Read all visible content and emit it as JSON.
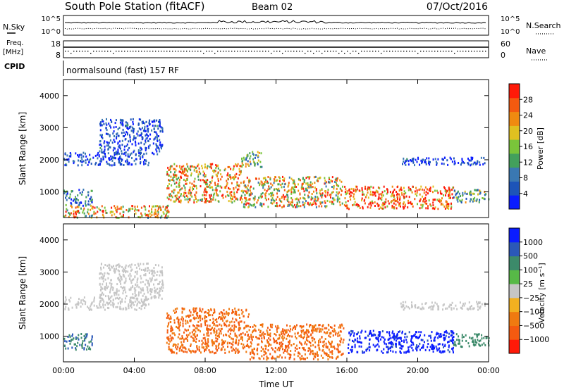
{
  "header": {
    "station": "South Pole Station (fitACF)",
    "beam": "Beam 02",
    "date": "07/Oct/2016"
  },
  "top_panels": {
    "noise": {
      "left_label": "N.Sky",
      "right_label": "N.Search",
      "left_ticks": [
        "10^5",
        "10^0"
      ],
      "right_ticks": [
        "10^5",
        "10^0"
      ]
    },
    "freq": {
      "left_label_1": "Freq.",
      "left_label_2": "[MHz]",
      "left_ticks": [
        "18",
        "8"
      ],
      "right_label": "Nave",
      "right_ticks": [
        "60",
        "0"
      ]
    },
    "cpid": {
      "label": "CPID",
      "mode": "normalsound (fast) 157 RF"
    }
  },
  "chart_data": [
    {
      "type": "heatmap",
      "name": "power",
      "ylabel": "Slant Range [km]",
      "xlabel": "",
      "xlim": [
        0,
        24
      ],
      "ylim": [
        200,
        4500
      ],
      "yticks": [
        "1000",
        "2000",
        "3000",
        "4000"
      ],
      "xticks": [
        "00:00",
        "04:00",
        "08:00",
        "12:00",
        "16:00",
        "20:00",
        "00:00"
      ],
      "colorbar": {
        "label": "Power [dB]",
        "ticks": [
          "4",
          "8",
          "12",
          "16",
          "20",
          "24",
          "28"
        ],
        "colors": [
          "#0a1cff",
          "#1d54b8",
          "#3a78b2",
          "#43a05c",
          "#7ac43a",
          "#e0c020",
          "#f08a10",
          "#f45a10",
          "#ff1a08"
        ]
      },
      "regions": [
        {
          "t0": 0.0,
          "t1": 4.8,
          "r0": 1850,
          "r1": 2250,
          "value": 6
        },
        {
          "t0": 2.0,
          "t1": 5.6,
          "r0": 2200,
          "r1": 3300,
          "value": 6
        },
        {
          "t0": 0.0,
          "t1": 1.6,
          "r0": 600,
          "r1": 1100,
          "value": 10
        },
        {
          "t0": 0.0,
          "t1": 6.0,
          "r0": 220,
          "r1": 600,
          "value": 20
        },
        {
          "t0": 5.8,
          "t1": 10.0,
          "r0": 700,
          "r1": 1900,
          "value": 22
        },
        {
          "t0": 10.0,
          "t1": 15.8,
          "r0": 550,
          "r1": 1500,
          "value": 20
        },
        {
          "t0": 15.8,
          "t1": 22.0,
          "r0": 500,
          "r1": 1200,
          "value": 27
        },
        {
          "t0": 22.0,
          "t1": 24.0,
          "r0": 700,
          "r1": 1100,
          "value": 14
        },
        {
          "t0": 19.0,
          "t1": 23.8,
          "r0": 1850,
          "r1": 2100,
          "value": 6
        },
        {
          "t0": 10.0,
          "t1": 11.2,
          "r0": 1800,
          "r1": 2300,
          "value": 15
        }
      ]
    },
    {
      "type": "heatmap",
      "name": "velocity",
      "ylabel": "Slant Range [km]",
      "xlabel": "Time UT",
      "xlim": [
        0,
        24
      ],
      "ylim": [
        200,
        4500
      ],
      "yticks": [
        "1000",
        "2000",
        "3000",
        "4000"
      ],
      "xticks": [
        "00:00",
        "04:00",
        "08:00",
        "12:00",
        "16:00",
        "20:00",
        "00:00"
      ],
      "colorbar": {
        "label": "Velocity [m s⁻¹]",
        "ticks": [
          "1000",
          "500",
          "100",
          "25",
          "−25",
          "−100",
          "−500",
          "−1000"
        ],
        "colors": [
          "#0a1cff",
          "#2b58b8",
          "#3c8a6a",
          "#57b947",
          "#c6c6c6",
          "#f2b020",
          "#f07a10",
          "#f45a10",
          "#ff1a08"
        ]
      },
      "regions": [
        {
          "t0": 0.0,
          "t1": 4.8,
          "r0": 1850,
          "r1": 2250,
          "value": 0
        },
        {
          "t0": 2.0,
          "t1": 5.6,
          "r0": 2200,
          "r1": 3300,
          "value": 0
        },
        {
          "t0": 0.0,
          "t1": 1.6,
          "r0": 600,
          "r1": 1100,
          "value": 300
        },
        {
          "t0": 5.8,
          "t1": 10.5,
          "r0": 500,
          "r1": 1900,
          "value": -300
        },
        {
          "t0": 10.5,
          "t1": 15.8,
          "r0": 300,
          "r1": 1400,
          "value": -300
        },
        {
          "t0": 16.0,
          "t1": 22.0,
          "r0": 500,
          "r1": 1200,
          "value": 900
        },
        {
          "t0": 22.0,
          "t1": 24.0,
          "r0": 700,
          "r1": 1100,
          "value": 200
        },
        {
          "t0": 19.0,
          "t1": 23.8,
          "r0": 1850,
          "r1": 2100,
          "value": 0
        }
      ]
    }
  ]
}
